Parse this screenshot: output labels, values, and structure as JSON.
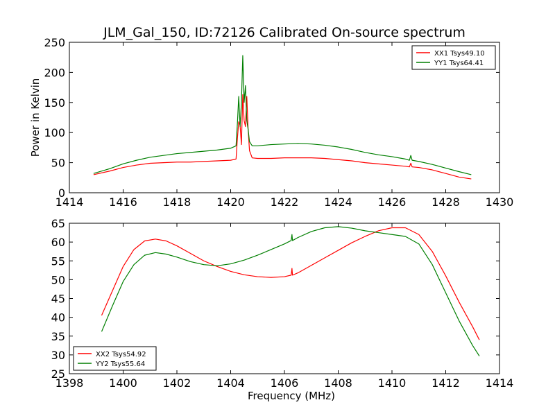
{
  "title": "JLM_Gal_150, ID:72126 Calibrated On-source spectrum",
  "colors": {
    "red": "#ff0000",
    "green": "#007f00",
    "axis": "#000000",
    "background": "#ffffff"
  },
  "chart_data": [
    {
      "type": "line",
      "ylabel": "Power in Kelvin",
      "xlabel": "",
      "xlim": [
        1414,
        1430
      ],
      "ylim": [
        0,
        250
      ],
      "xticks": [
        1414,
        1416,
        1418,
        1420,
        1422,
        1424,
        1426,
        1428,
        1430
      ],
      "yticks": [
        0,
        50,
        100,
        150,
        200,
        250
      ],
      "legend": "top-right",
      "series": [
        {
          "name": "XX1 Tsys49.10",
          "color": "#ff0000",
          "x": [
            1414.9,
            1415.5,
            1416,
            1416.5,
            1417,
            1417.5,
            1418,
            1418.5,
            1419,
            1419.5,
            1420,
            1420.2,
            1420.25,
            1420.3,
            1420.35,
            1420.4,
            1420.45,
            1420.5,
            1420.55,
            1420.6,
            1420.65,
            1420.7,
            1420.8,
            1421,
            1421.5,
            1422,
            1422.5,
            1423,
            1423.5,
            1424,
            1424.5,
            1425,
            1425.5,
            1426,
            1426.5,
            1426.65,
            1426.7,
            1426.75,
            1427,
            1427.5,
            1428,
            1428.5,
            1428.95
          ],
          "y": [
            30,
            36,
            42,
            46,
            49,
            50,
            51,
            51,
            52,
            53,
            54,
            56,
            90,
            118,
            112,
            80,
            163,
            120,
            110,
            160,
            105,
            70,
            58,
            57,
            57,
            58,
            58,
            58,
            57,
            55,
            53,
            50,
            48,
            46,
            44,
            43,
            49,
            43,
            42,
            38,
            32,
            26,
            23
          ]
        },
        {
          "name": "YY1 Tsys64.41",
          "color": "#007f00",
          "x": [
            1414.9,
            1415.5,
            1416,
            1416.5,
            1417,
            1417.5,
            1418,
            1418.5,
            1419,
            1419.5,
            1420,
            1420.2,
            1420.25,
            1420.3,
            1420.35,
            1420.4,
            1420.45,
            1420.5,
            1420.55,
            1420.6,
            1420.65,
            1420.7,
            1420.8,
            1421,
            1421.5,
            1422,
            1422.5,
            1423,
            1423.5,
            1424,
            1424.5,
            1425,
            1425.5,
            1426,
            1426.5,
            1426.65,
            1426.7,
            1426.75,
            1427,
            1427.5,
            1428,
            1428.5,
            1428.95
          ],
          "y": [
            32,
            40,
            48,
            54,
            59,
            62,
            65,
            67,
            69,
            71,
            74,
            78,
            115,
            160,
            110,
            150,
            228,
            150,
            178,
            120,
            105,
            85,
            78,
            78,
            80,
            81,
            82,
            81,
            79,
            76,
            72,
            67,
            63,
            60,
            56,
            54,
            62,
            54,
            52,
            47,
            41,
            35,
            30
          ]
        }
      ]
    },
    {
      "type": "line",
      "xlabel": "Frequency (MHz)",
      "ylabel": "",
      "xlim": [
        1398,
        1414
      ],
      "ylim": [
        25,
        65
      ],
      "xticks": [
        1398,
        1400,
        1402,
        1404,
        1406,
        1408,
        1410,
        1412,
        1414
      ],
      "yticks": [
        25,
        30,
        35,
        40,
        45,
        50,
        55,
        60,
        65
      ],
      "legend": "bottom-left",
      "series": [
        {
          "name": "XX2 Tsys54.92",
          "color": "#ff0000",
          "x": [
            1399.2,
            1399.6,
            1400,
            1400.4,
            1400.8,
            1401.2,
            1401.6,
            1402,
            1402.5,
            1403,
            1403.5,
            1404,
            1404.5,
            1405,
            1405.5,
            1406,
            1406.25,
            1406.28,
            1406.3,
            1406.5,
            1407,
            1407.5,
            1408,
            1408.5,
            1409,
            1409.5,
            1410,
            1410.5,
            1411,
            1411.5,
            1412,
            1412.5,
            1413,
            1413.25
          ],
          "y": [
            40.5,
            47,
            53.5,
            58,
            60.3,
            60.8,
            60.3,
            59,
            57,
            55,
            53.5,
            52.2,
            51.3,
            50.8,
            50.6,
            50.8,
            51.2,
            53,
            51.2,
            51.8,
            53.8,
            55.8,
            57.8,
            59.8,
            61.5,
            63,
            63.8,
            63.8,
            62,
            57.5,
            51,
            44,
            37.5,
            34
          ]
        },
        {
          "name": "YY2 Tsys55.64",
          "color": "#007f00",
          "x": [
            1399.2,
            1399.6,
            1400,
            1400.4,
            1400.8,
            1401.2,
            1401.6,
            1402,
            1402.5,
            1403,
            1403.5,
            1404,
            1404.5,
            1405,
            1405.5,
            1406,
            1406.25,
            1406.28,
            1406.3,
            1406.5,
            1407,
            1407.5,
            1408,
            1408.5,
            1409,
            1409.5,
            1410,
            1410.5,
            1411,
            1411.5,
            1412,
            1412.5,
            1413,
            1413.25
          ],
          "y": [
            36.2,
            43,
            49.5,
            54,
            56.5,
            57.2,
            56.8,
            56,
            54.8,
            54,
            53.7,
            54.2,
            55.2,
            56.5,
            58,
            59.5,
            60.4,
            62,
            60.4,
            61.2,
            62.8,
            63.8,
            64.1,
            63.7,
            63,
            62.5,
            62,
            61.5,
            59.5,
            54,
            46.5,
            39,
            32.5,
            29.7
          ]
        }
      ]
    }
  ]
}
